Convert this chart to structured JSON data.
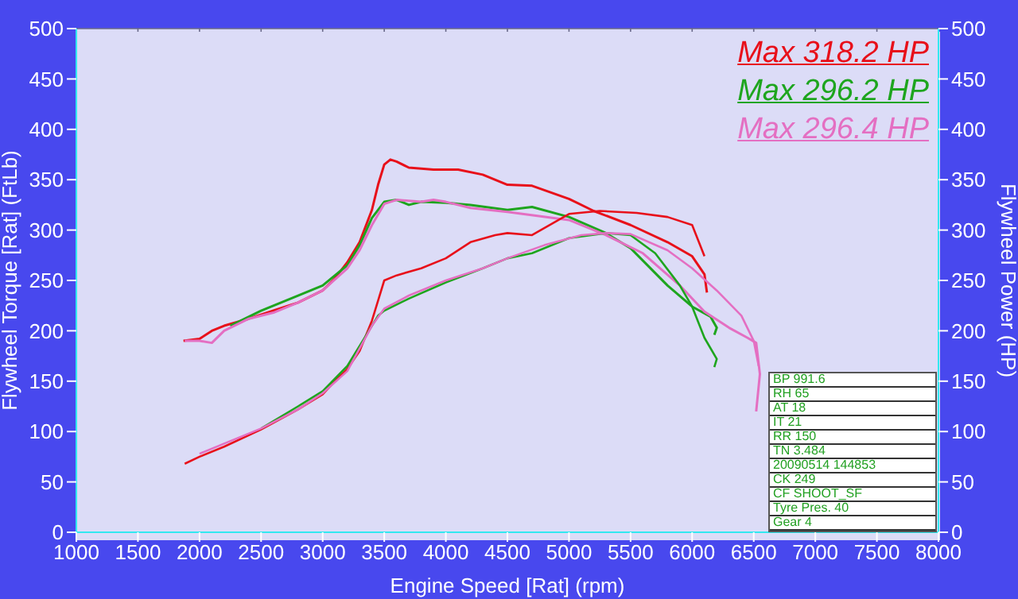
{
  "chart_data": {
    "type": "line",
    "xlabel": "Engine Speed [Rat] (rpm)",
    "ylabel": "Flywheel Torque [Rat] (FtLb)",
    "y2label": "Flywheel Power (HP)",
    "xlim": [
      1000,
      8000
    ],
    "xticks": [
      1000,
      1500,
      2000,
      2500,
      3000,
      3500,
      4000,
      4500,
      5000,
      5500,
      6000,
      6500,
      7000,
      7500,
      8000
    ],
    "ylim": [
      0,
      500
    ],
    "yticks": [
      0,
      50,
      100,
      150,
      200,
      250,
      300,
      350,
      400,
      450,
      500
    ],
    "y2lim": [
      0,
      500
    ],
    "y2ticks": [
      0,
      50,
      100,
      150,
      200,
      250,
      300,
      350,
      400,
      450,
      500
    ],
    "grid": true,
    "marker": "none",
    "line_style": "solid",
    "annotations": [
      "Max 318.2 HP",
      "Max 296.2 HP",
      "Max 296.4 HP",
      "BP 991.6",
      "RH 65",
      "AT 18",
      "IT 21",
      "RR 150",
      "TN 3.484",
      "20090514 144853",
      "CK 249",
      "CF SHOOT_SF",
      "Tyre Pres. 40",
      "Gear 4"
    ],
    "series": [
      {
        "color": "#e8101a",
        "x": [
          1870,
          2000,
          2100,
          2200,
          2400,
          2600,
          2800,
          3000,
          3100,
          3200,
          3300,
          3400,
          3450,
          3500,
          3550,
          3600,
          3700,
          3900,
          4100,
          4300,
          4500,
          4700,
          5000,
          5200,
          5500,
          5800,
          6000,
          6100,
          6120
        ],
        "values": [
          190,
          192,
          200,
          205,
          212,
          220,
          228,
          240,
          252,
          268,
          288,
          320,
          345,
          365,
          370,
          368,
          362,
          360,
          360,
          355,
          345,
          344,
          331,
          319,
          305,
          288,
          274,
          256,
          238
        ]
      },
      {
        "color": "#1ea51e",
        "x": [
          2250,
          2500,
          2800,
          3000,
          3200,
          3300,
          3400,
          3500,
          3600,
          3700,
          3800,
          4000,
          4200,
          4500,
          4700,
          5000,
          5300,
          5500,
          5800,
          6000,
          6150,
          6200,
          6180
        ],
        "values": [
          205,
          220,
          235,
          245,
          265,
          285,
          312,
          328,
          330,
          325,
          328,
          327,
          325,
          320,
          323,
          313,
          297,
          282,
          245,
          224,
          214,
          203,
          196
        ]
      },
      {
        "color": "#e46fc2",
        "x": [
          1880,
          2000,
          2100,
          2200,
          2400,
          2600,
          2800,
          3000,
          3200,
          3300,
          3400,
          3500,
          3600,
          3800,
          3900,
          4000,
          4200,
          4500,
          5000,
          5300,
          5600,
          5900,
          6100,
          6300,
          6450,
          6520,
          6550,
          6520
        ],
        "values": [
          190,
          190,
          188,
          200,
          212,
          218,
          228,
          240,
          262,
          280,
          305,
          326,
          330,
          328,
          330,
          328,
          322,
          318,
          310,
          295,
          277,
          245,
          219,
          203,
          193,
          188,
          157,
          120
        ]
      },
      {
        "color": "#e8101a",
        "axis": "y2",
        "x": [
          1880,
          2000,
          2200,
          2500,
          2800,
          3000,
          3100,
          3200,
          3300,
          3400,
          3450,
          3500,
          3600,
          3800,
          4000,
          4200,
          4400,
          4500,
          4700,
          5000,
          5250,
          5550,
          5800,
          6000,
          6100
        ],
        "values": [
          68,
          75,
          85,
          102,
          122,
          137,
          150,
          162,
          180,
          210,
          230,
          250,
          255,
          262,
          272,
          288,
          295,
          297,
          295,
          316,
          319,
          317,
          313,
          305,
          274
        ]
      },
      {
        "color": "#1ea51e",
        "axis": "y2",
        "x": [
          2500,
          2800,
          3000,
          3200,
          3300,
          3400,
          3450,
          3500,
          3700,
          4000,
          4300,
          4500,
          4700,
          5000,
          5300,
          5500,
          5700,
          5900,
          6000,
          6100,
          6200,
          6180
        ],
        "values": [
          103,
          125,
          140,
          165,
          185,
          205,
          215,
          220,
          232,
          248,
          262,
          272,
          277,
          292,
          297,
          295,
          277,
          245,
          224,
          193,
          172,
          164
        ]
      },
      {
        "color": "#e46fc2",
        "axis": "y2",
        "x": [
          2000,
          2200,
          2500,
          2800,
          3000,
          3200,
          3400,
          3500,
          3700,
          4000,
          4300,
          4500,
          4800,
          5100,
          5300,
          5500,
          5800,
          6000,
          6200,
          6400,
          6500,
          6540
        ],
        "values": [
          78,
          88,
          103,
          122,
          138,
          160,
          205,
          222,
          235,
          250,
          262,
          272,
          285,
          295,
          297,
          296,
          280,
          262,
          240,
          215,
          190,
          165
        ]
      }
    ]
  }
}
